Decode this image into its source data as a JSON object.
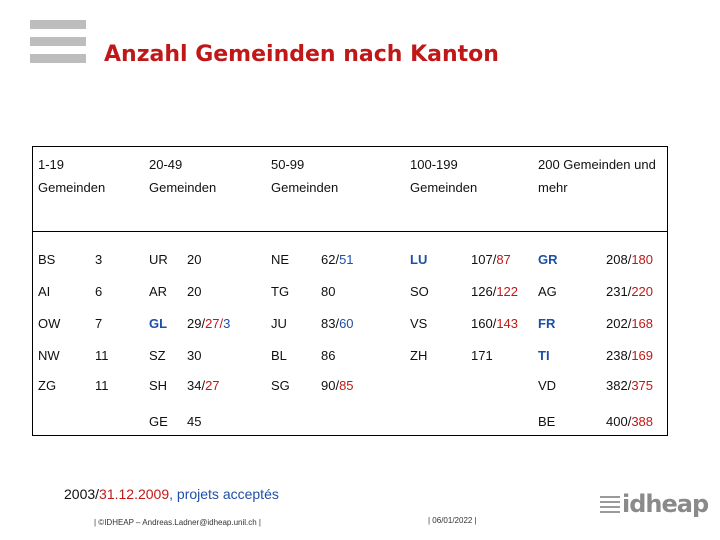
{
  "title": "Anzahl Gemeinden nach Kanton",
  "headers": [
    {
      "line1": "1-19",
      "line2": "Gemeinden"
    },
    {
      "line1": "20-49",
      "line2": "Gemeinden"
    },
    {
      "line1": "50-99",
      "line2": "Gemeinden"
    },
    {
      "line1": "100-199",
      "line2": "Gemeinden"
    },
    {
      "line1": "200 Gemeinden und",
      "line2": "mehr"
    }
  ],
  "groups": [
    [
      {
        "canton": "BS",
        "value": "3"
      },
      {
        "canton": "AI",
        "value": "6"
      },
      {
        "canton": "OW",
        "value": "7"
      },
      {
        "canton": "NW",
        "value": "11"
      },
      {
        "canton": "ZG",
        "value": "11"
      }
    ],
    [
      {
        "canton": "UR",
        "value": "20"
      },
      {
        "canton": "AR",
        "value": "20"
      },
      {
        "canton": "GL",
        "value_a": "29/",
        "value_b": "27/",
        "value_c": "3"
      },
      {
        "canton": "SZ",
        "value": "30"
      },
      {
        "canton": "SH",
        "value_a": "34/",
        "value_b": "27"
      },
      {
        "canton": "GE",
        "value": "45"
      }
    ],
    [
      {
        "canton": "NE",
        "value_a": "62/",
        "value_b": "51"
      },
      {
        "canton": "TG",
        "value": "80"
      },
      {
        "canton": "JU",
        "value_a": "83/",
        "value_b": "60"
      },
      {
        "canton": "BL",
        "value": "86"
      },
      {
        "canton": "SG",
        "value_a": "90/",
        "value_b": "85"
      }
    ],
    [
      {
        "canton": "LU",
        "value_a": "107/",
        "value_b": "87"
      },
      {
        "canton": "SO",
        "value_a": "126/",
        "value_b": "122"
      },
      {
        "canton": "VS",
        "value_a": "160/",
        "value_b": "143"
      },
      {
        "canton": "ZH",
        "value": "171"
      }
    ],
    [
      {
        "canton": "GR",
        "value_a": "208/",
        "value_b": "180"
      },
      {
        "canton": "AG",
        "value_a": "231/",
        "value_b": "220"
      },
      {
        "canton": "FR",
        "value_a": "202/",
        "value_b": "168"
      },
      {
        "canton": "TI",
        "value_a": "238/",
        "value_b": "169"
      },
      {
        "canton": "VD",
        "value_a": "382/",
        "value_b": "375"
      },
      {
        "canton": "BE",
        "value_a": "400/",
        "value_b": "388"
      }
    ]
  ],
  "footer": {
    "year_a": "2003/",
    "year_b": "31.12.2009",
    "year_c": ", projets acceptés",
    "email": "| ©IDHEAP – Andreas.Ladner@idheap.unil.ch |",
    "date": "| 06/01/2022 |",
    "logo_text": "idheap"
  }
}
